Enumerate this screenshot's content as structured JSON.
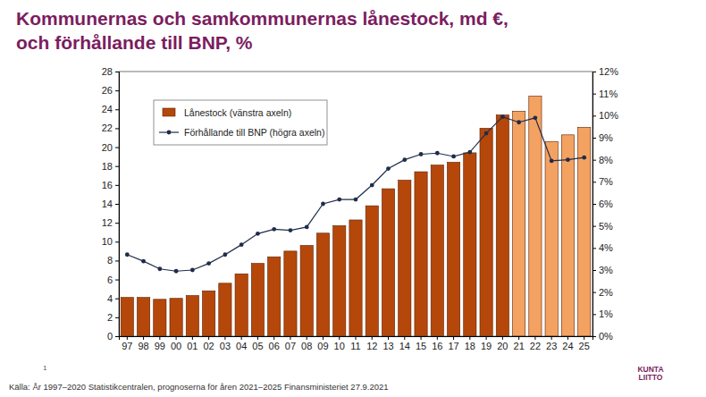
{
  "chart_data": {
    "type": "bar",
    "title": [
      "Kommunernas och samkommunernas lånestock, md €,",
      "och förhållande till BNP, %"
    ],
    "categories": [
      "97",
      "98",
      "99",
      "00",
      "01",
      "02",
      "03",
      "04",
      "05",
      "06",
      "07",
      "08",
      "09",
      "10",
      "11",
      "12",
      "13",
      "14",
      "15",
      "16",
      "17",
      "18",
      "19",
      "20",
      "21",
      "22",
      "23",
      "24",
      "25"
    ],
    "series": [
      {
        "name": "Lånestock (vänstra axeln)",
        "type": "bar",
        "colors": [
          "#b5470b",
          "#b5470b",
          "#b5470b",
          "#b5470b",
          "#b5470b",
          "#b5470b",
          "#b5470b",
          "#b5470b",
          "#b5470b",
          "#b5470b",
          "#b5470b",
          "#b5470b",
          "#b5470b",
          "#b5470b",
          "#b5470b",
          "#b5470b",
          "#b5470b",
          "#b5470b",
          "#b5470b",
          "#b5470b",
          "#b5470b",
          "#b5470b",
          "#b5470b",
          "#b5470b",
          "#f4a261",
          "#f4a261",
          "#f4a261",
          "#f4a261",
          "#f4a261"
        ],
        "values": [
          4.1,
          4.1,
          3.9,
          4.0,
          4.3,
          4.8,
          5.6,
          6.6,
          7.7,
          8.4,
          9.0,
          9.6,
          10.9,
          11.7,
          12.3,
          13.8,
          15.6,
          16.5,
          17.4,
          18.1,
          18.4,
          19.4,
          22.0,
          23.4,
          23.8,
          25.4,
          20.6,
          21.3,
          22.1
        ]
      },
      {
        "name": "Förhållande till BNP (högra axeln)",
        "type": "line",
        "axis": "y2",
        "color": "#1f2d4a",
        "marker": "circle",
        "line_style": "solid",
        "values": [
          3.7,
          3.4,
          3.05,
          2.95,
          3.0,
          3.3,
          3.7,
          4.15,
          4.65,
          4.85,
          4.8,
          4.95,
          6.0,
          6.2,
          6.2,
          6.85,
          7.6,
          8.0,
          8.25,
          8.3,
          8.15,
          8.35,
          9.2,
          9.95,
          9.7,
          9.9,
          7.95,
          8.0,
          8.1
        ]
      }
    ],
    "ylim": [
      0,
      28
    ],
    "yticks": [
      0,
      2,
      4,
      6,
      8,
      10,
      12,
      14,
      16,
      18,
      20,
      22,
      24,
      26,
      28
    ],
    "y2lim": [
      0,
      12
    ],
    "y2ticks": [
      {
        "value": 0,
        "label": "0%"
      },
      {
        "value": 1,
        "label": "1%"
      },
      {
        "value": 2,
        "label": "2%"
      },
      {
        "value": 3,
        "label": "3%"
      },
      {
        "value": 4,
        "label": "4%"
      },
      {
        "value": 5,
        "label": "5%"
      },
      {
        "value": 6,
        "label": "6%"
      },
      {
        "value": 7,
        "label": "7%"
      },
      {
        "value": 8,
        "label": "8%"
      },
      {
        "value": 9,
        "label": "9%"
      },
      {
        "value": 10,
        "label": "10%"
      },
      {
        "value": 11,
        "label": "11%"
      },
      {
        "value": 12,
        "label": "12%"
      }
    ],
    "grid": false,
    "legend": "upper left",
    "source": "Källa: År 1997–2020 Statistikcentralen, prognoserna för åren 2021–2025 Finansministeriet 27.9.2021",
    "page_number": "1",
    "logo": [
      "KUNTA",
      "LIITTO"
    ]
  }
}
